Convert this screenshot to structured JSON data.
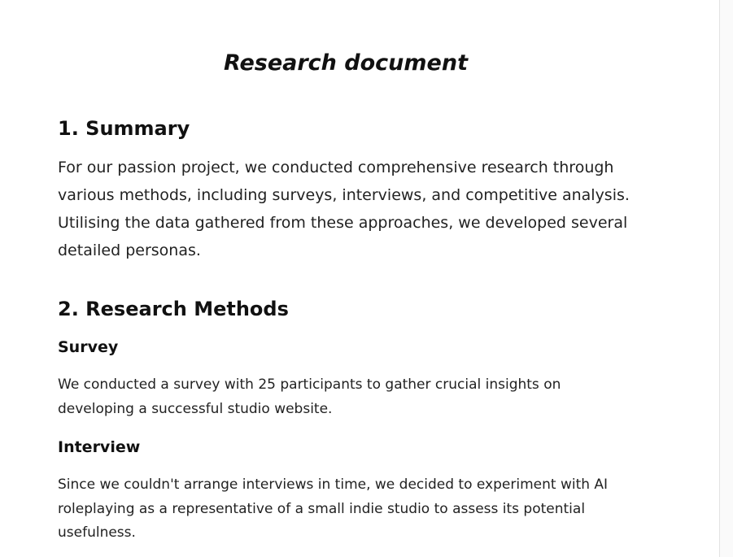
{
  "document": {
    "title": "Research document",
    "sections": [
      {
        "heading": "1. Summary",
        "paragraph": "For our passion project, we conducted comprehensive research through various methods, including surveys, interviews, and competitive analysis. Utilising the data gathered from these approaches, we developed several detailed personas."
      },
      {
        "heading": "2. Research Methods",
        "subsections": [
          {
            "heading": "Survey",
            "paragraph": "We conducted a survey with 25 participants to gather crucial insights on developing a successful studio website."
          },
          {
            "heading": "Interview",
            "paragraph": "Since we couldn't arrange interviews in time, we decided to experiment with AI roleplaying as a representative of a small indie studio to assess its potential usefulness."
          }
        ]
      }
    ]
  }
}
